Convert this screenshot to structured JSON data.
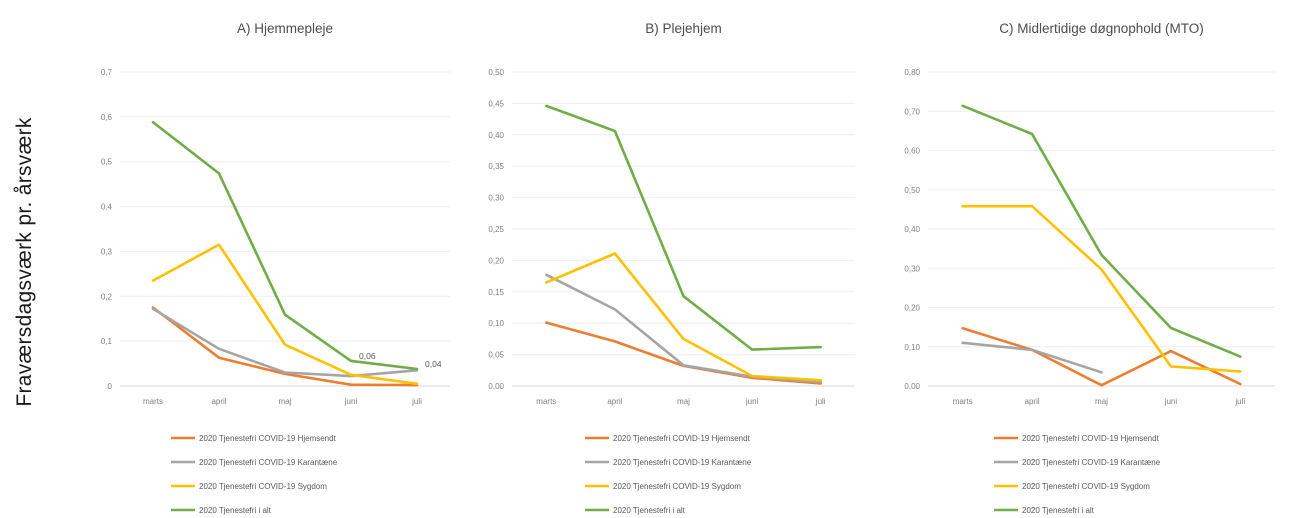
{
  "y_axis_label": "Fraværsdagsværk pr. årsværk",
  "series_colors": {
    "hjemsendt": "#ed7d31",
    "karantaene": "#a5a5a5",
    "sygdom": "#ffc000",
    "ialt": "#70ad47"
  },
  "chart_data": [
    {
      "type": "line",
      "title": "A) Hjemmepleje",
      "categories": [
        "marts",
        "april",
        "maj",
        "juni",
        "juli"
      ],
      "ylim": [
        0,
        0.7
      ],
      "yticks": [
        "0",
        "0,1",
        "0,2",
        "0,3",
        "0,4",
        "0,5",
        "0,6",
        "0,7"
      ],
      "series": [
        {
          "name": "2020 Tjenestefri COVID-19 Hjemsendt",
          "color_key": "hjemsendt",
          "values": [
            0.175,
            0.063,
            0.027,
            0.003,
            0.002
          ]
        },
        {
          "name": "2020 Tjenestefri COVID-19 Karantæne",
          "color_key": "karantaene",
          "values": [
            0.172,
            0.083,
            0.03,
            0.022,
            0.035
          ]
        },
        {
          "name": "2020 Tjenestefri COVID-19 Sygdom",
          "color_key": "sygdom",
          "values": [
            0.235,
            0.315,
            0.092,
            0.025,
            0.005
          ]
        },
        {
          "name": "2020 Tjenestefri i alt",
          "color_key": "ialt",
          "values": [
            0.588,
            0.474,
            0.159,
            0.056,
            0.038
          ]
        }
      ],
      "data_labels": [
        {
          "series": 3,
          "index": 3,
          "text": "0,06"
        },
        {
          "series": 3,
          "index": 4,
          "text": "0,04"
        }
      ]
    },
    {
      "type": "line",
      "title": "B) Plejehjem",
      "categories": [
        "marts",
        "april",
        "maj",
        "juni",
        "juli"
      ],
      "ylim": [
        0,
        0.5
      ],
      "yticks": [
        "0,00",
        "0,05",
        "0,10",
        "0,15",
        "0,20",
        "0,25",
        "0,30",
        "0,35",
        "0,40",
        "0,45",
        "0,50"
      ],
      "series": [
        {
          "name": "2020 Tjenestefri COVID-19 Hjemsendt",
          "color_key": "hjemsendt",
          "values": [
            0.101,
            0.071,
            0.032,
            0.013,
            0.004
          ]
        },
        {
          "name": "2020 Tjenestefri COVID-19 Karantæne",
          "color_key": "karantaene",
          "values": [
            0.177,
            0.122,
            0.033,
            0.015,
            0.006
          ]
        },
        {
          "name": "2020 Tjenestefri COVID-19 Sygdom",
          "color_key": "sygdom",
          "values": [
            0.165,
            0.211,
            0.075,
            0.016,
            0.009
          ]
        },
        {
          "name": "2020 Tjenestefri i alt",
          "color_key": "ialt",
          "values": [
            0.446,
            0.406,
            0.143,
            0.058,
            0.062
          ]
        }
      ],
      "data_labels": []
    },
    {
      "type": "line",
      "title": "C) Midlertidige døgnophold (MTO)",
      "categories": [
        "marts",
        "april",
        "maj",
        "juni",
        "juli"
      ],
      "ylim": [
        0,
        0.8
      ],
      "yticks": [
        "0,00",
        "0,10",
        "0,20",
        "0,30",
        "0,40",
        "0,50",
        "0,60",
        "0,70",
        "0,80"
      ],
      "series": [
        {
          "name": "2020 Tjenestefri COVID-19 Hjemsendt",
          "color_key": "hjemsendt",
          "values": [
            0.147,
            0.092,
            0.002,
            0.089,
            0.005
          ]
        },
        {
          "name": "2020 Tjenestefri COVID-19 Karantæne",
          "color_key": "karantaene",
          "values": [
            0.11,
            0.092,
            0.035,
            null,
            null
          ]
        },
        {
          "name": "2020 Tjenestefri COVID-19 Sygdom",
          "color_key": "sygdom",
          "values": [
            0.458,
            0.458,
            0.297,
            0.05,
            0.037
          ]
        },
        {
          "name": "2020 Tjenestefri i alt",
          "color_key": "ialt",
          "values": [
            0.714,
            0.642,
            0.334,
            0.148,
            0.075
          ]
        }
      ],
      "data_labels": []
    }
  ]
}
